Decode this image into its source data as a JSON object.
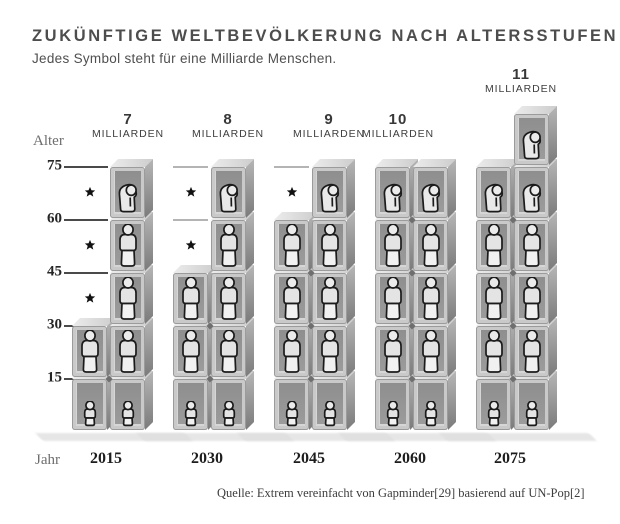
{
  "header": {
    "title": "ZUKÜNFTIGE WELTBEVÖLKERUNG NACH ALTERSSTUFEN",
    "subtitle": "Jedes Symbol steht für eine Milliarde Menschen."
  },
  "footer": {
    "source": "Quelle: Extrem vereinfacht von Gapminder[29] basierend auf UN-Pop[2]"
  },
  "chart_data": {
    "type": "bar",
    "variant": "isotype-pictogram",
    "title": "ZUKÜNFTIGE WELTBEVÖLKERUNG NACH ALTERSSTUFEN",
    "subtitle": "Jedes Symbol steht für eine Milliarde Menschen.",
    "unit": "1 Symbol = 1 Milliarde Menschen",
    "xlabel": "Jahr",
    "ylabel": "Alter",
    "y_ticks": [
      75,
      60,
      45,
      30,
      15
    ],
    "ylim": [
      0,
      90
    ],
    "grid": "partial",
    "legend_position": "none",
    "age_bands": [
      "0–15",
      "15–30",
      "30–45",
      "45–60",
      "60–75",
      "75–90"
    ],
    "icon_by_band": [
      "child",
      "adult",
      "adult",
      "adult",
      "elderly",
      "elderly"
    ],
    "categories": [
      "2015",
      "2030",
      "2045",
      "2060",
      "2075"
    ],
    "totals": [
      7,
      8,
      9,
      10,
      11
    ],
    "years": [
      {
        "year": "2015",
        "total_number": "7",
        "total_word": "MILLIARDEN",
        "counts": [
          2,
          2,
          1,
          1,
          1,
          0
        ],
        "star_bands": [
          2,
          3,
          4
        ],
        "faint_line_levels": []
      },
      {
        "year": "2030",
        "total_number": "8",
        "total_word": "MILLIARDEN",
        "counts": [
          2,
          2,
          2,
          1,
          1,
          0
        ],
        "star_bands": [
          3,
          4
        ],
        "faint_line_levels": [
          60,
          75
        ]
      },
      {
        "year": "2045",
        "total_number": "9",
        "total_word": "MILLIARDEN",
        "counts": [
          2,
          2,
          2,
          2,
          1,
          0
        ],
        "star_bands": [
          4
        ],
        "faint_line_levels": [
          75
        ]
      },
      {
        "year": "2060",
        "total_number": "10",
        "total_word": "MILLIARDEN",
        "counts": [
          2,
          2,
          2,
          2,
          2,
          0
        ],
        "star_bands": [],
        "faint_line_levels": []
      },
      {
        "year": "2075",
        "total_number": "11",
        "total_word": "MILLIARDEN",
        "counts": [
          2,
          2,
          2,
          2,
          2,
          1
        ],
        "star_bands": [],
        "faint_line_levels": []
      }
    ],
    "marker_note": "small black star = less than one billion in this age band",
    "colors": {
      "title_text": "#4d4d4d",
      "axis_text": "#6e6e6e",
      "tick_text": "#262626",
      "box_frame": "#c9c9c9",
      "box_interior": "#959595",
      "box_top": "#e0e0e0",
      "box_side": "#8a8a8a",
      "person_fill": "#e8e8e8",
      "person_outline": "#1b1b1b",
      "star": "#111111",
      "shadow": "#dedede",
      "background": "#ffffff"
    }
  }
}
